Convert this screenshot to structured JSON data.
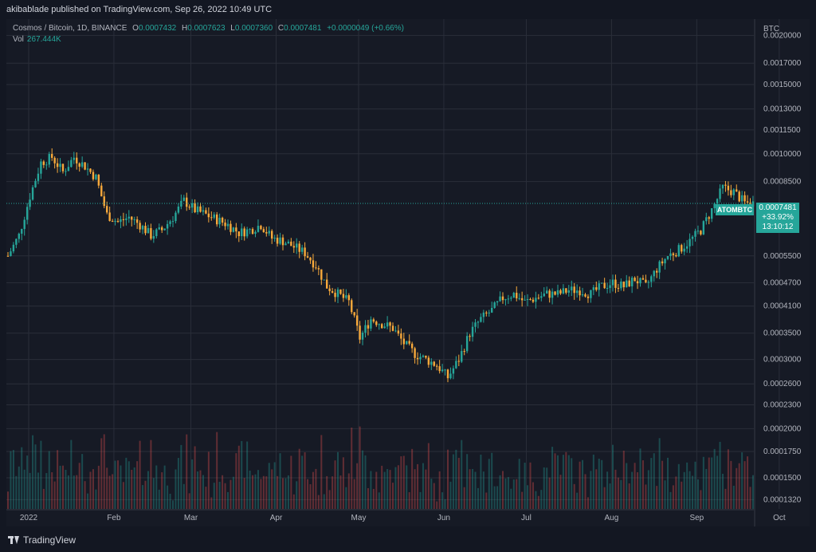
{
  "header": {
    "publisher": "akibablade published on TradingView.com, Sep 26, 2022 10:49 UTC"
  },
  "legend": {
    "symbol": "Cosmos / Bitcoin, 1D, BINANCE",
    "o_label": "O",
    "o_value": "0.0007432",
    "h_label": "H",
    "h_value": "0.0007623",
    "l_label": "L",
    "l_value": "0.0007360",
    "c_label": "C",
    "c_value": "0.0007481",
    "change": "+0.0000049 (+0.66%)",
    "vol_label": "Vol",
    "vol_value": "267.444K"
  },
  "price_tag": {
    "ticker": "ATOMBTC",
    "price": "0.0007481",
    "change_pct": "+33.92%",
    "countdown": "13:10:12"
  },
  "colors": {
    "up": "#26a69a",
    "down": "#f7a93b",
    "background": "#161a25",
    "grid": "#2a2e39",
    "text": "#b2b5be"
  },
  "footer": {
    "brand": "TradingView"
  },
  "chart_data": {
    "type": "candlestick",
    "scale": "log",
    "currency_label": "BTC",
    "ylim": [
      0.000125,
      0.0022
    ],
    "y_ticks": [
      "0.0020000",
      "0.0017000",
      "0.0015000",
      "0.0013000",
      "0.0011500",
      "0.0010000",
      "0.0008500",
      "0.0005500",
      "0.0004700",
      "0.0004100",
      "0.0003500",
      "0.0003000",
      "0.0002600",
      "0.0002300",
      "0.0002000",
      "0.0001750",
      "0.0001500",
      "0.0001320"
    ],
    "y_tick_values": [
      0.002,
      0.0017,
      0.0015,
      0.0013,
      0.00115,
      0.001,
      0.00085,
      0.00055,
      0.00047,
      0.00041,
      0.00035,
      0.0003,
      0.00026,
      0.00023,
      0.0002,
      0.000175,
      0.00015,
      0.000132
    ],
    "x_tick_labels": [
      "2022",
      "Feb",
      "Mar",
      "Apr",
      "May",
      "Jun",
      "Jul",
      "Aug",
      "Sep",
      "Oct"
    ],
    "x_tick_days": [
      0,
      31,
      59,
      90,
      120,
      151,
      181,
      212,
      243,
      273
    ],
    "last_price": 0.0007481,
    "price_path": [
      [
        0,
        0.00055
      ],
      [
        4,
        0.00062
      ],
      [
        8,
        0.00078
      ],
      [
        12,
        0.00095
      ],
      [
        16,
        0.00098
      ],
      [
        20,
        0.0009
      ],
      [
        24,
        0.00098
      ],
      [
        28,
        0.00093
      ],
      [
        32,
        0.00087
      ],
      [
        36,
        0.0007
      ],
      [
        40,
        0.00067
      ],
      [
        44,
        0.00069
      ],
      [
        48,
        0.00066
      ],
      [
        52,
        0.00062
      ],
      [
        56,
        0.00064
      ],
      [
        60,
        0.00069
      ],
      [
        64,
        0.00076
      ],
      [
        68,
        0.00072
      ],
      [
        72,
        0.0007
      ],
      [
        76,
        0.00068
      ],
      [
        80,
        0.00066
      ],
      [
        84,
        0.00063
      ],
      [
        88,
        0.00064
      ],
      [
        92,
        0.00066
      ],
      [
        96,
        0.00061
      ],
      [
        100,
        0.0006
      ],
      [
        104,
        0.00058
      ],
      [
        108,
        0.00056
      ],
      [
        112,
        0.00052
      ],
      [
        116,
        0.00046
      ],
      [
        120,
        0.00044
      ],
      [
        124,
        0.00042
      ],
      [
        128,
        0.00034
      ],
      [
        132,
        0.00038
      ],
      [
        136,
        0.00037
      ],
      [
        140,
        0.00036
      ],
      [
        144,
        0.00033
      ],
      [
        148,
        0.00031
      ],
      [
        152,
        0.0003
      ],
      [
        156,
        0.00029
      ],
      [
        160,
        0.00027
      ],
      [
        164,
        0.0003
      ],
      [
        168,
        0.00035
      ],
      [
        172,
        0.00038
      ],
      [
        176,
        0.0004
      ],
      [
        180,
        0.00043
      ],
      [
        184,
        0.00044
      ],
      [
        188,
        0.00042
      ],
      [
        192,
        0.00043
      ],
      [
        196,
        0.00044
      ],
      [
        200,
        0.00044
      ],
      [
        204,
        0.00045
      ],
      [
        208,
        0.00045
      ],
      [
        212,
        0.00044
      ],
      [
        216,
        0.00046
      ],
      [
        220,
        0.00047
      ],
      [
        224,
        0.00046
      ],
      [
        228,
        0.00048
      ],
      [
        232,
        0.00046
      ],
      [
        236,
        0.00051
      ],
      [
        240,
        0.00055
      ],
      [
        244,
        0.00057
      ],
      [
        248,
        0.0006
      ],
      [
        252,
        0.00064
      ],
      [
        256,
        0.00072
      ],
      [
        260,
        0.00082
      ],
      [
        264,
        0.0008
      ],
      [
        268,
        0.00075
      ],
      [
        271,
        0.0007481
      ]
    ]
  }
}
